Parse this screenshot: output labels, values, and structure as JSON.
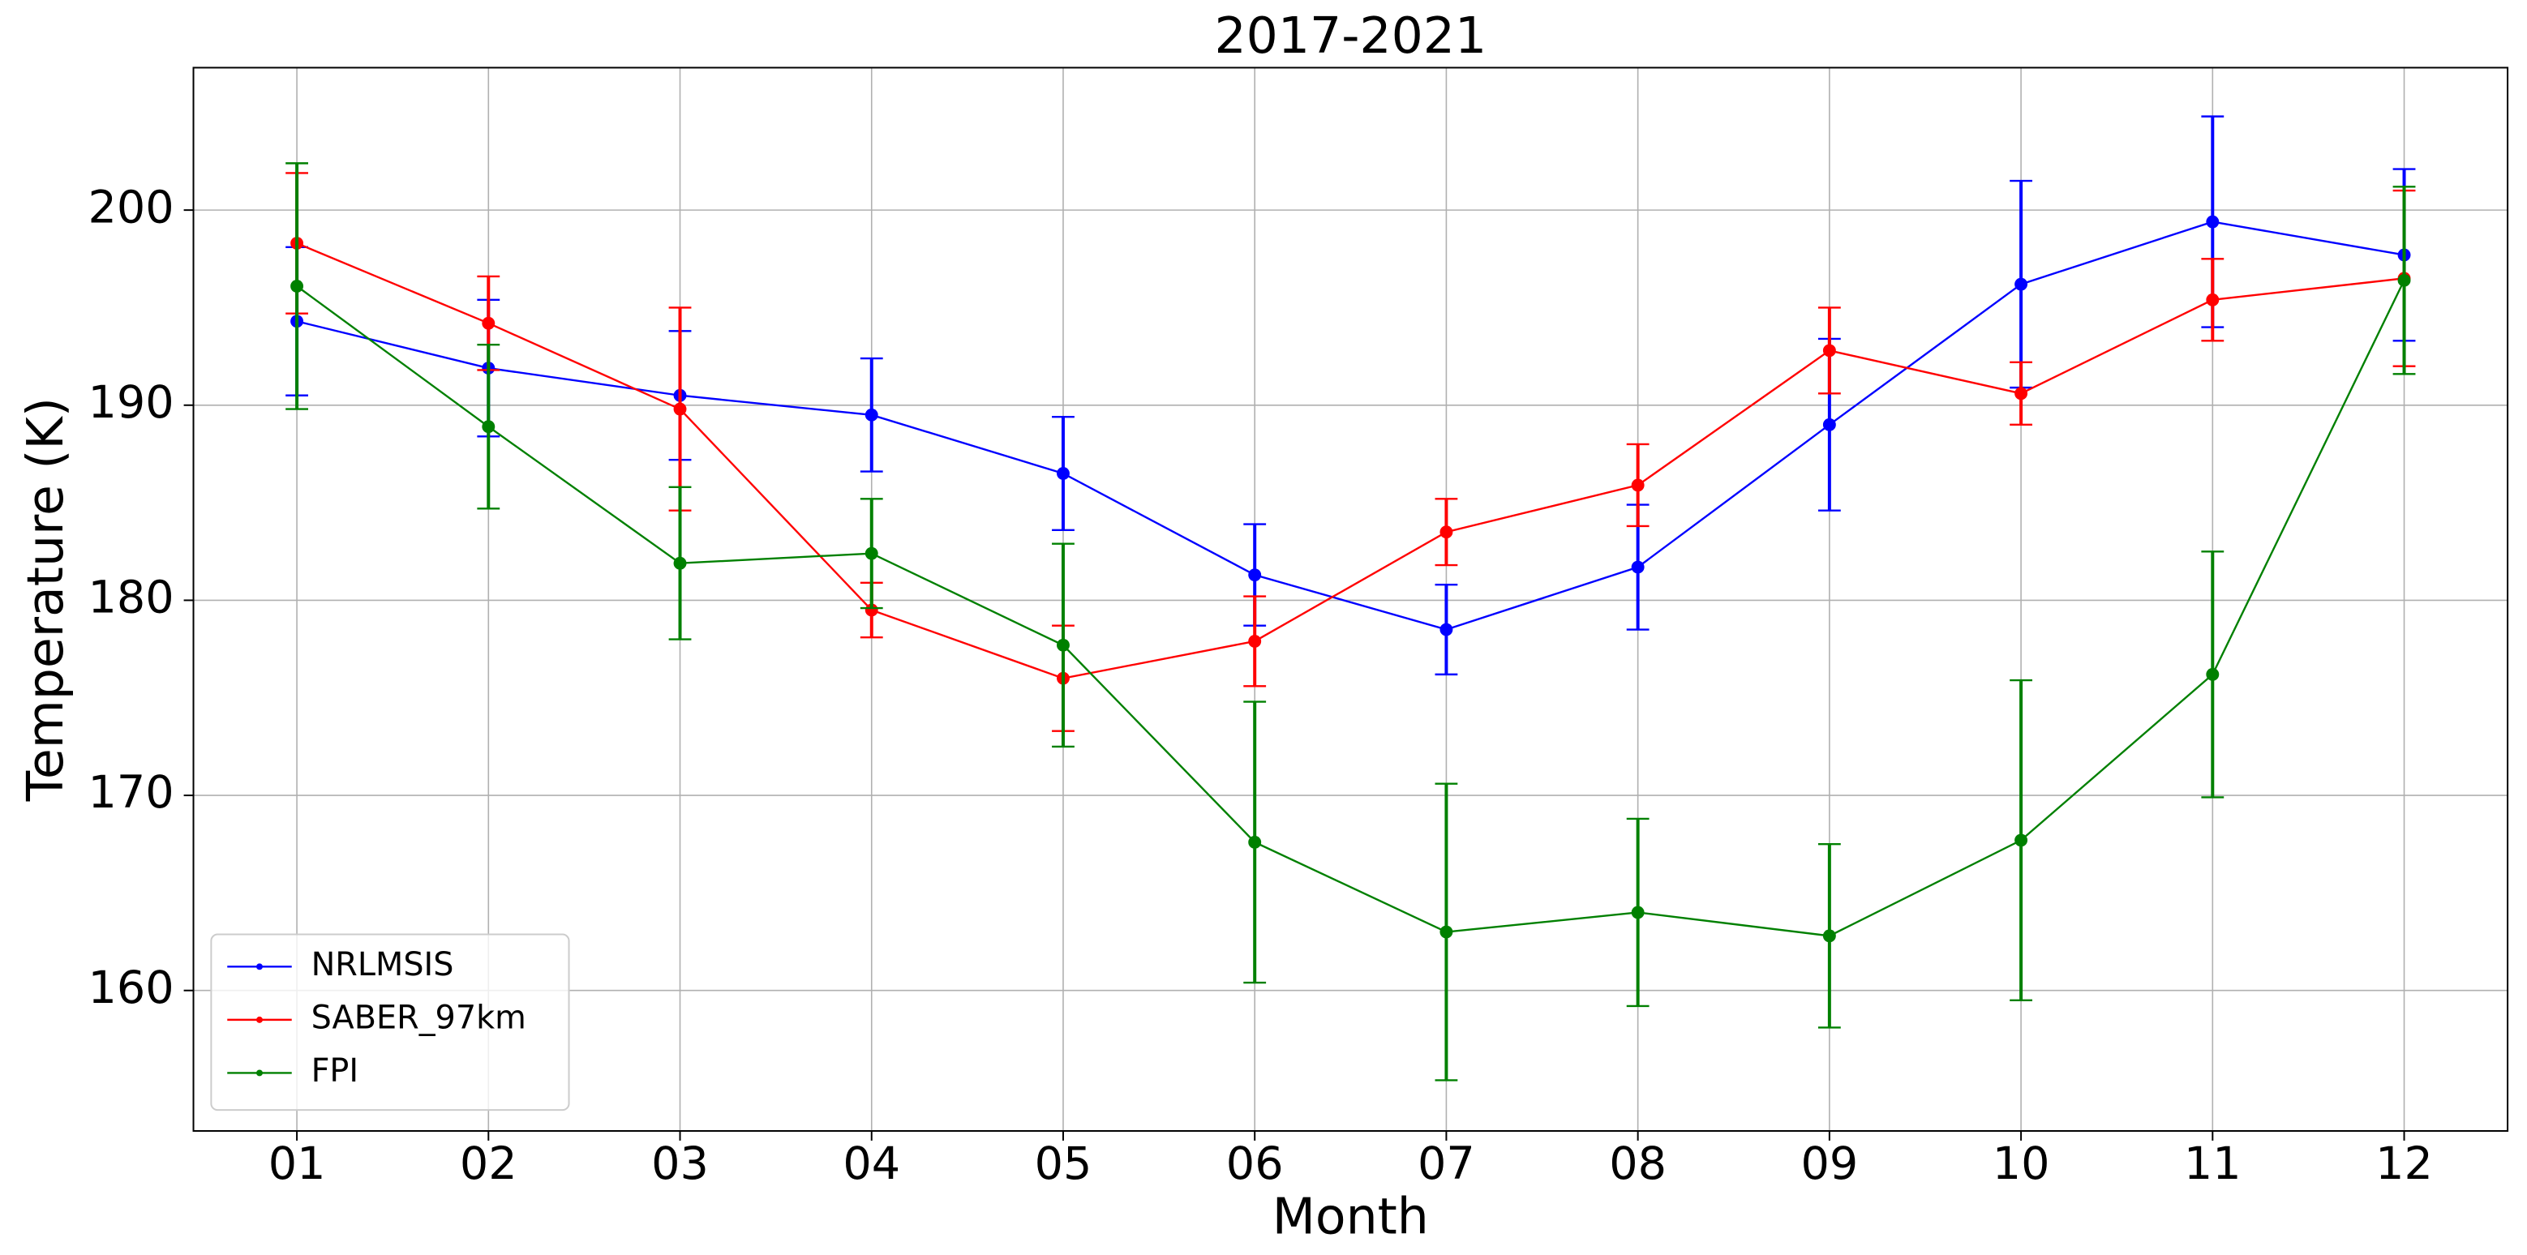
{
  "chart_data": {
    "type": "line",
    "title": "2017-2021",
    "x_label": "Month",
    "y_label": "Temperature (K)",
    "categories": [
      "01",
      "02",
      "03",
      "04",
      "05",
      "06",
      "07",
      "08",
      "09",
      "10",
      "11",
      "12"
    ],
    "series": [
      {
        "name": "NRLMSIS",
        "color": "#0000ff",
        "values": [
          194.3,
          191.9,
          190.5,
          189.5,
          186.5,
          181.3,
          178.5,
          181.7,
          189.0,
          196.2,
          199.4,
          197.7
        ],
        "errors": [
          3.8,
          3.5,
          3.3,
          2.9,
          2.9,
          2.6,
          2.3,
          3.2,
          4.4,
          5.3,
          5.4,
          4.4
        ]
      },
      {
        "name": "SABER_97km",
        "color": "#ff0000",
        "values": [
          198.3,
          194.2,
          189.8,
          179.5,
          176.0,
          177.9,
          183.5,
          185.9,
          192.8,
          190.6,
          195.4,
          196.5
        ],
        "errors": [
          3.6,
          2.4,
          5.2,
          1.4,
          2.7,
          2.3,
          1.7,
          2.1,
          2.2,
          1.6,
          2.1,
          4.5
        ]
      },
      {
        "name": "FPI",
        "color": "#008000",
        "values": [
          196.1,
          188.9,
          181.9,
          182.4,
          177.7,
          167.6,
          163.0,
          164.0,
          162.8,
          167.7,
          176.2,
          196.4
        ],
        "errors": [
          6.3,
          4.2,
          3.9,
          2.8,
          5.2,
          7.2,
          7.6,
          4.8,
          4.7,
          8.2,
          6.3,
          4.8
        ]
      }
    ],
    "ylim": [
      152.8,
      207.3
    ],
    "yticks": [
      160,
      170,
      180,
      190,
      200
    ],
    "grid": true,
    "legend": "lower left"
  }
}
